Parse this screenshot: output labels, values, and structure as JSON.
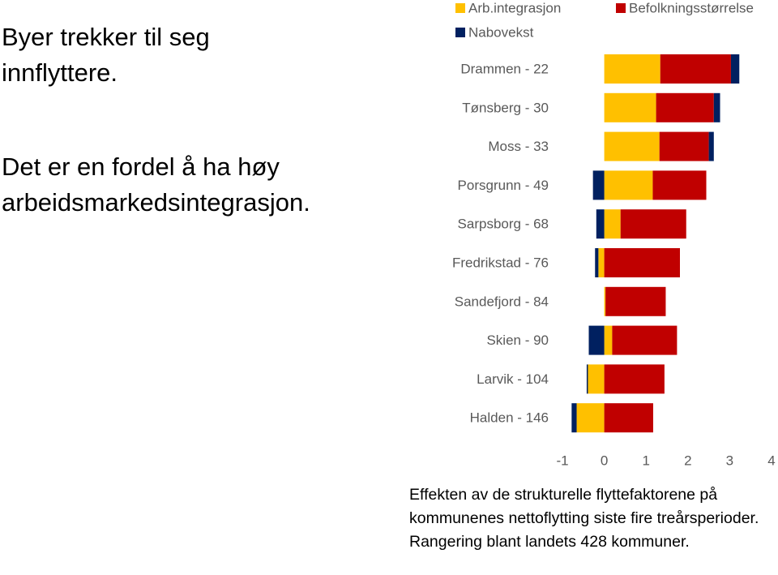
{
  "slide": {
    "heading": "Byer trekker til seg innflyttere.",
    "subheading": "Det er en fordel å ha høy arbeidsmarkedsintegrasjon."
  },
  "chart_data": {
    "type": "bar",
    "orientation": "horizontal",
    "stacked": true,
    "legend": "top",
    "categories": [
      "Drammen - 22",
      "Tønsberg - 30",
      "Moss - 33",
      "Porsgrunn - 49",
      "Sarpsborg - 68",
      "Fredrikstad - 76",
      "Sandefjord - 84",
      "Skien - 90",
      "Larvik - 104",
      "Halden - 146"
    ],
    "series": [
      {
        "name": "Arb.integrasjon",
        "color": "#FFC000",
        "values": [
          1.34,
          1.24,
          1.32,
          1.16,
          0.39,
          -0.14,
          0.03,
          0.19,
          -0.39,
          -0.66
        ]
      },
      {
        "name": "Befolkningsstørrelse",
        "color": "#C00000",
        "values": [
          1.69,
          1.38,
          1.18,
          1.28,
          1.57,
          1.81,
          1.44,
          1.55,
          1.44,
          1.17
        ]
      },
      {
        "name": "Nabovekst",
        "color": "#002060",
        "values": [
          0.2,
          0.15,
          0.12,
          -0.27,
          -0.19,
          -0.08,
          0,
          -0.37,
          -0.03,
          -0.12
        ]
      }
    ],
    "xlim": [
      -1,
      4
    ],
    "xticks": [
      -1,
      0,
      1,
      2,
      3,
      4
    ],
    "caption": "Effekten av de strukturelle flyttefaktorene på kommunenes nettoflytting siste fire treårsperioder. Rangering blant landets 428 kommuner."
  }
}
